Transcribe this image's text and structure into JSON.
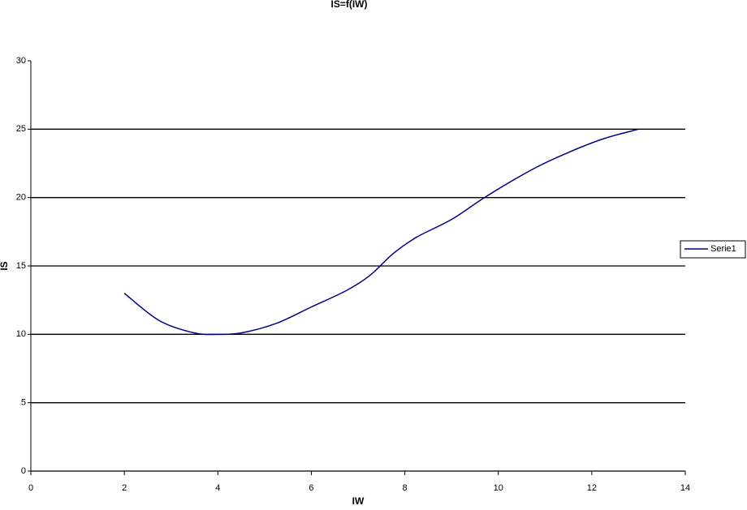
{
  "chart_data": {
    "type": "line",
    "title": "IS=f(IW)",
    "x_label": "IW",
    "y_label": "IS",
    "x": [
      2,
      2.75,
      3.5,
      4,
      4.5,
      5.25,
      6,
      6.75,
      7.25,
      7.75,
      8.25,
      9,
      9.75,
      10.75,
      11.5,
      12.25,
      13
    ],
    "series": [
      {
        "name": "Serie1",
        "color": "#000080",
        "values": [
          13,
          11,
          10.1,
          10,
          10.1,
          10.8,
          12,
          13.2,
          14.3,
          15.9,
          17.1,
          18.4,
          20.1,
          22.1,
          23.3,
          24.3,
          25
        ]
      }
    ],
    "xlim": [
      0,
      14
    ],
    "xticks": [
      0,
      2,
      4,
      6,
      8,
      10,
      12,
      14
    ],
    "ylim": [
      0,
      30
    ],
    "yticks": [
      0,
      5,
      10,
      15,
      20,
      25,
      30
    ],
    "grid": true,
    "smooth": true,
    "legend": "right"
  }
}
